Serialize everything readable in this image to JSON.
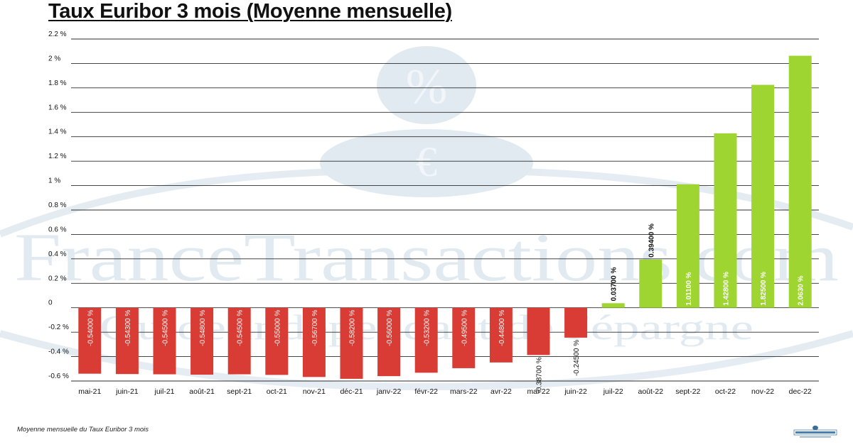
{
  "header": {
    "title": "Taux Euribor 3 mois (Moyenne mensuelle)"
  },
  "footer": {
    "caption": "Moyenne mensuelle du Taux Euribor 3 mois"
  },
  "colors": {
    "negative_bar": "#d93c34",
    "positive_bar": "#9ed530",
    "gridline": "#2b2b2b",
    "text": "#111111",
    "watermark": "#c9d9e6"
  },
  "watermark": {
    "brand": "FranceTransactions.com",
    "tagline": "Guide indépendant de l'épargne",
    "icons": [
      "percent-coin-icon",
      "euro-coin-icon"
    ]
  },
  "chart_data": {
    "type": "bar",
    "title": "Taux Euribor 3 mois (Moyenne mensuelle)",
    "xlabel": "",
    "ylabel": "",
    "ylim": [
      -0.6,
      2.2
    ],
    "yticks": [
      -0.6,
      -0.4,
      -0.2,
      0,
      0.2,
      0.4,
      0.6,
      0.8,
      1,
      1.2,
      1.4,
      1.6,
      1.8,
      2,
      2.2
    ],
    "ytick_labels": [
      "-0.6 %",
      "-0.4 %",
      "-0.2 %",
      "0",
      "0.2 %",
      "0.4 %",
      "0.6 %",
      "0.8 %",
      "1 %",
      "1.2 %",
      "1.4 %",
      "1.6 %",
      "1.8 %",
      "2 %",
      "2.2 %"
    ],
    "grid": true,
    "legend": "none",
    "categories": [
      "mai-21",
      "juin-21",
      "juil-21",
      "août-21",
      "sept-21",
      "oct-21",
      "nov-21",
      "déc-21",
      "janv-22",
      "févr-22",
      "mars-22",
      "avr-22",
      "mai-22",
      "juin-22",
      "juil-22",
      "août-22",
      "sept-22",
      "oct-22",
      "nov-22",
      "dec-22"
    ],
    "values": [
      -0.54,
      -0.543,
      -0.545,
      -0.548,
      -0.545,
      -0.55,
      -0.567,
      -0.582,
      -0.56,
      -0.532,
      -0.495,
      -0.448,
      -0.387,
      -0.245,
      0.037,
      0.394,
      1.011,
      1.428,
      1.825,
      2.063
    ],
    "data_labels": [
      "-0.54000 %",
      "-0.54300 %",
      "-0.54500 %",
      "-0.54800 %",
      "-0.54500 %",
      "-0.55000 %",
      "-0.56700 %",
      "-0.58200 %",
      "-0.56000 %",
      "-0.53200 %",
      "-0.49500 %",
      "-0.44800 %",
      "-0.38700 %",
      "-0.24500 %",
      "0.03700 %",
      "0.39400 %",
      "1.01100 %",
      "1.42800 %",
      "1.82500 %",
      "2.0630 %"
    ]
  }
}
